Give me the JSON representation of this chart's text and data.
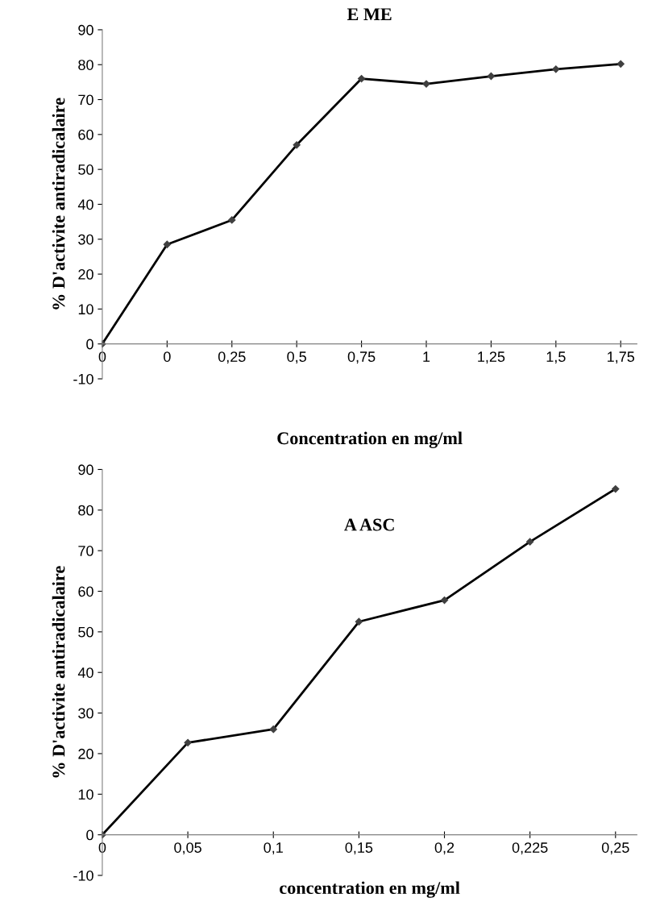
{
  "chart_data": [
    {
      "type": "line",
      "title": "E ME",
      "xlabel": "Concentration en mg/ml",
      "ylabel": "% D'activite antiradicalaire",
      "categories": [
        "0",
        "0",
        "0,25",
        "0,5",
        "0,75",
        "1",
        "1,25",
        "1,5",
        "1,75"
      ],
      "series": [
        {
          "color": "#000000",
          "values": [
            0,
            28.5,
            35.5,
            57,
            76,
            74.5,
            76.7,
            78.7,
            80.2
          ]
        }
      ],
      "ylim": [
        -10,
        90
      ],
      "yticks": [
        -10,
        0,
        10,
        20,
        30,
        40,
        50,
        60,
        70,
        80,
        90
      ],
      "grid": false,
      "legend": false,
      "marker": "diamond",
      "line_style": "solid"
    },
    {
      "type": "line",
      "title": "A ASC",
      "xlabel": "concentration en mg/ml",
      "ylabel": "% D'activite antiradicalaire",
      "categories": [
        "0",
        "0,05",
        "0,1",
        "0,15",
        "0,2",
        "0,225",
        "0,25"
      ],
      "series": [
        {
          "color": "#000000",
          "values": [
            0,
            22.7,
            26,
            52.5,
            57.8,
            72.2,
            85.2
          ]
        }
      ],
      "ylim": [
        -10,
        90
      ],
      "yticks": [
        -10,
        0,
        10,
        20,
        30,
        40,
        50,
        60,
        70,
        80,
        90
      ],
      "grid": false,
      "legend": false,
      "marker": "diamond",
      "line_style": "solid"
    }
  ]
}
